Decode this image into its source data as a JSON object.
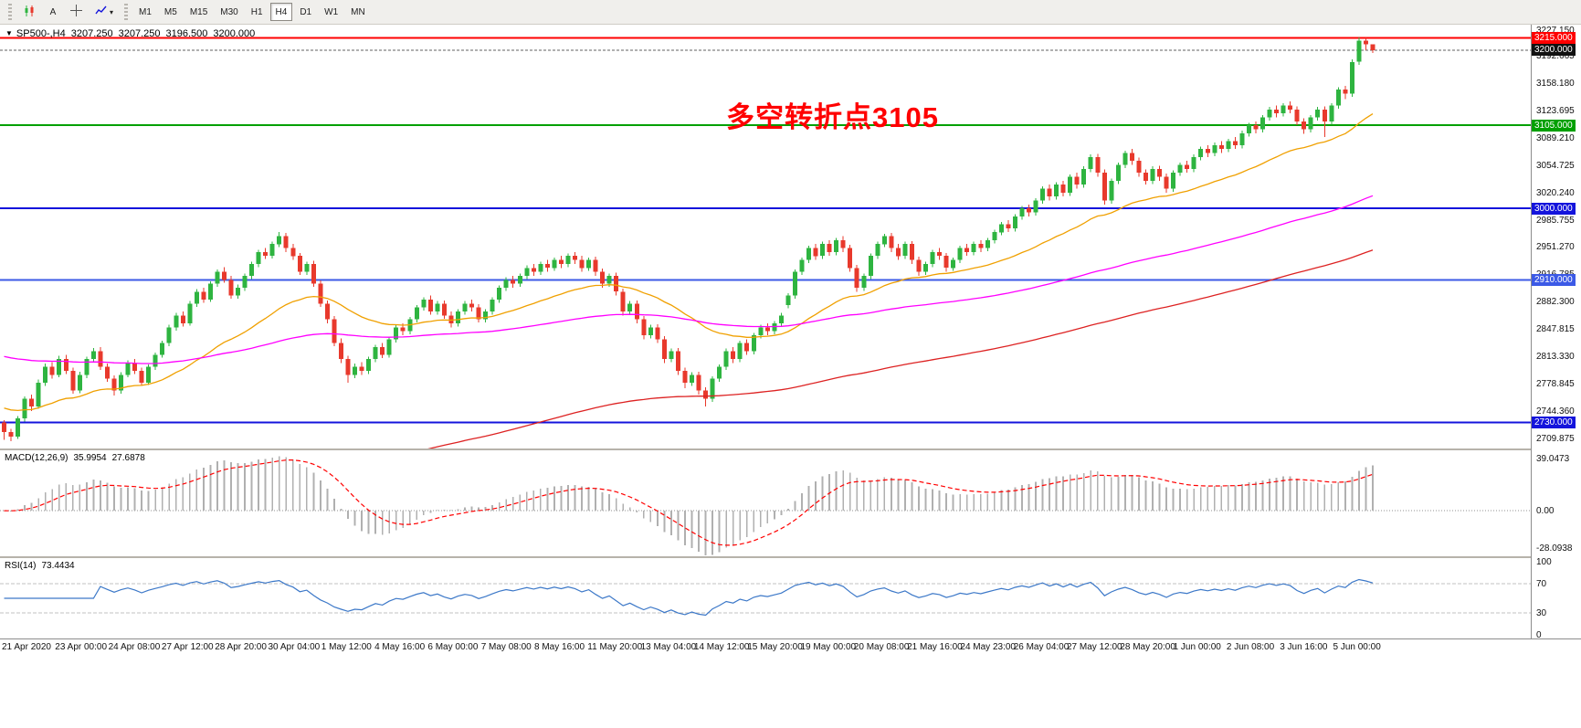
{
  "toolbar": {
    "text_tool_label": "A",
    "dropdown_arrow": "▾",
    "timeframes": [
      "M1",
      "M5",
      "M15",
      "M30",
      "H1",
      "H4",
      "D1",
      "W1",
      "MN"
    ],
    "active_timeframe": "H4"
  },
  "chart": {
    "collapse_arrow": "▼",
    "symbol": "SP500-,H4",
    "open": "3207.250",
    "high": "3207.250",
    "low": "3196.500",
    "close": "3200.000",
    "annotation": {
      "text": "多空转折点3105",
      "color": "#ff0000"
    },
    "price_ticks": [
      "3227.150",
      "3192.665",
      "3158.180",
      "3123.695",
      "3089.210",
      "3054.725",
      "3020.240",
      "2985.755",
      "2951.270",
      "2916.785",
      "2882.300",
      "2847.815",
      "2813.330",
      "2778.845",
      "2744.360",
      "2709.875"
    ],
    "bid_badge": "3200.000"
  },
  "macd": {
    "name": "MACD(12,26,9)",
    "main_value": "35.9954",
    "signal_value": "27.6878",
    "axis_labels": [
      "39.0473",
      "0.00",
      "-28.0938"
    ],
    "axis_values": [
      39.0473,
      0,
      -28.0938
    ]
  },
  "rsi": {
    "name": "RSI(14)",
    "value": "73.4434",
    "axis_labels": [
      "100",
      "70",
      "30",
      "0"
    ],
    "axis_values": [
      100,
      70,
      30,
      0
    ],
    "levels": [
      70,
      30
    ]
  },
  "time_axis": {
    "labels": [
      "21 Apr 2020",
      "23 Apr 00:00",
      "24 Apr 08:00",
      "27 Apr 12:00",
      "28 Apr 20:00",
      "30 Apr 04:00",
      "1 May 12:00",
      "4 May 16:00",
      "6 May 00:00",
      "7 May 08:00",
      "8 May 16:00",
      "11 May 20:00",
      "13 May 04:00",
      "14 May 12:00",
      "15 May 20:00",
      "19 May 00:00",
      "20 May 08:00",
      "21 May 16:00",
      "24 May 23:00",
      "26 May 04:00",
      "27 May 12:00",
      "28 May 20:00",
      "1 Jun 00:00",
      "2 Jun 08:00",
      "3 Jun 16:00",
      "5 Jun 00:00"
    ]
  },
  "chart_data": {
    "type": "candlestick",
    "symbol": "SP500-",
    "timeframe": "H4",
    "title": "SP500-,H4 3207.250 3207.250 3196.500 3200.000",
    "price_range": [
      2697,
      3232
    ],
    "bid": 3200.0,
    "current_price": "3200.000",
    "colors": {
      "up": "#2eb440",
      "down": "#e8392c",
      "bid_line": "#606060",
      "bid_badge_bg": "#111111",
      "macd_hist": "#b0b0b0",
      "macd_signal": "#ff0000",
      "rsi_line": "#3c78c8",
      "rsi_level": "#c0c0c0"
    },
    "hlines": [
      {
        "value": 3215,
        "label": "3215.000",
        "color": "#ff0000",
        "width": 2
      },
      {
        "value": 3105,
        "label": "3105.000",
        "color": "#00a000",
        "width": 2
      },
      {
        "value": 3000,
        "label": "3000.000",
        "color": "#1414dc",
        "width": 2
      },
      {
        "value": 2910,
        "label": "2910.000",
        "color": "#3c5ae6",
        "width": 2
      },
      {
        "value": 2730,
        "label": "2730.000",
        "color": "#1414dc",
        "width": 2
      }
    ],
    "overlays": [
      {
        "name": "ma-fast",
        "period": 30,
        "seed": 2750,
        "color": "#f0a000"
      },
      {
        "name": "ma-mid",
        "period": 110,
        "seed": 2815,
        "color": "#ff00ff"
      },
      {
        "name": "ma-slow",
        "period": 170,
        "seed": 2530,
        "color": "#dd2222"
      }
    ],
    "macd": {
      "fast": 12,
      "slow": 26,
      "signal": 9,
      "range": [
        -34,
        45
      ]
    },
    "rsi": {
      "period": 14,
      "range": [
        0,
        100
      ]
    },
    "candles": [
      [
        2730,
        2733,
        2708,
        2718
      ],
      [
        2718,
        2722,
        2706,
        2712
      ],
      [
        2712,
        2738,
        2709,
        2735
      ],
      [
        2735,
        2763,
        2731,
        2760
      ],
      [
        2760,
        2765,
        2744,
        2750
      ],
      [
        2750,
        2784,
        2747,
        2780
      ],
      [
        2780,
        2804,
        2776,
        2800
      ],
      [
        2800,
        2806,
        2785,
        2790
      ],
      [
        2790,
        2814,
        2787,
        2810
      ],
      [
        2810,
        2815,
        2791,
        2795
      ],
      [
        2795,
        2799,
        2766,
        2770
      ],
      [
        2770,
        2794,
        2767,
        2790
      ],
      [
        2790,
        2813,
        2786,
        2810
      ],
      [
        2810,
        2824,
        2806,
        2820
      ],
      [
        2820,
        2825,
        2796,
        2800
      ],
      [
        2800,
        2804,
        2781,
        2785
      ],
      [
        2785,
        2789,
        2764,
        2770
      ],
      [
        2770,
        2793,
        2766,
        2790
      ],
      [
        2790,
        2808,
        2787,
        2805
      ],
      [
        2805,
        2810,
        2791,
        2795
      ],
      [
        2795,
        2799,
        2776,
        2780
      ],
      [
        2780,
        2803,
        2777,
        2800
      ],
      [
        2800,
        2818,
        2796,
        2815
      ],
      [
        2815,
        2833,
        2812,
        2830
      ],
      [
        2830,
        2853,
        2826,
        2850
      ],
      [
        2850,
        2868,
        2846,
        2865
      ],
      [
        2865,
        2870,
        2851,
        2855
      ],
      [
        2855,
        2883,
        2852,
        2880
      ],
      [
        2880,
        2898,
        2876,
        2895
      ],
      [
        2895,
        2900,
        2881,
        2885
      ],
      [
        2885,
        2908,
        2882,
        2905
      ],
      [
        2905,
        2923,
        2901,
        2920
      ],
      [
        2920,
        2926,
        2906,
        2910
      ],
      [
        2910,
        2915,
        2886,
        2890
      ],
      [
        2890,
        2904,
        2886,
        2900
      ],
      [
        2900,
        2918,
        2896,
        2915
      ],
      [
        2915,
        2933,
        2911,
        2930
      ],
      [
        2930,
        2948,
        2926,
        2945
      ],
      [
        2945,
        2950,
        2936,
        2940
      ],
      [
        2940,
        2958,
        2937,
        2955
      ],
      [
        2955,
        2970,
        2951,
        2965
      ],
      [
        2965,
        2969,
        2945,
        2950
      ],
      [
        2950,
        2955,
        2935,
        2940
      ],
      [
        2940,
        2944,
        2916,
        2920
      ],
      [
        2920,
        2933,
        2916,
        2930
      ],
      [
        2930,
        2934,
        2901,
        2905
      ],
      [
        2905,
        2909,
        2876,
        2880
      ],
      [
        2880,
        2884,
        2855,
        2860
      ],
      [
        2860,
        2864,
        2826,
        2830
      ],
      [
        2830,
        2836,
        2805,
        2810
      ],
      [
        2810,
        2814,
        2780,
        2790
      ],
      [
        2790,
        2804,
        2786,
        2800
      ],
      [
        2800,
        2806,
        2790,
        2795
      ],
      [
        2795,
        2813,
        2791,
        2810
      ],
      [
        2810,
        2828,
        2806,
        2825
      ],
      [
        2825,
        2830,
        2811,
        2815
      ],
      [
        2815,
        2838,
        2812,
        2835
      ],
      [
        2835,
        2853,
        2831,
        2850
      ],
      [
        2850,
        2855,
        2840,
        2845
      ],
      [
        2845,
        2863,
        2841,
        2860
      ],
      [
        2860,
        2878,
        2856,
        2875
      ],
      [
        2875,
        2888,
        2871,
        2885
      ],
      [
        2885,
        2890,
        2866,
        2870
      ],
      [
        2870,
        2883,
        2866,
        2880
      ],
      [
        2880,
        2884,
        2861,
        2865
      ],
      [
        2865,
        2870,
        2850,
        2855
      ],
      [
        2855,
        2873,
        2851,
        2870
      ],
      [
        2870,
        2883,
        2866,
        2880
      ],
      [
        2880,
        2885,
        2870,
        2875
      ],
      [
        2875,
        2879,
        2856,
        2860
      ],
      [
        2860,
        2873,
        2856,
        2870
      ],
      [
        2870,
        2888,
        2866,
        2885
      ],
      [
        2885,
        2903,
        2881,
        2900
      ],
      [
        2900,
        2913,
        2896,
        2910
      ],
      [
        2910,
        2915,
        2900,
        2905
      ],
      [
        2905,
        2918,
        2901,
        2915
      ],
      [
        2915,
        2928,
        2911,
        2925
      ],
      [
        2925,
        2930,
        2915,
        2920
      ],
      [
        2920,
        2933,
        2916,
        2930
      ],
      [
        2930,
        2935,
        2920,
        2925
      ],
      [
        2925,
        2938,
        2921,
        2935
      ],
      [
        2935,
        2940,
        2925,
        2930
      ],
      [
        2930,
        2943,
        2926,
        2940
      ],
      [
        2940,
        2945,
        2930,
        2935
      ],
      [
        2935,
        2940,
        2920,
        2925
      ],
      [
        2925,
        2938,
        2921,
        2935
      ],
      [
        2935,
        2939,
        2915,
        2920
      ],
      [
        2920,
        2924,
        2900,
        2905
      ],
      [
        2905,
        2918,
        2901,
        2915
      ],
      [
        2915,
        2919,
        2890,
        2895
      ],
      [
        2895,
        2899,
        2865,
        2870
      ],
      [
        2870,
        2883,
        2866,
        2880
      ],
      [
        2880,
        2884,
        2855,
        2860
      ],
      [
        2860,
        2864,
        2835,
        2840
      ],
      [
        2840,
        2853,
        2836,
        2850
      ],
      [
        2850,
        2854,
        2830,
        2835
      ],
      [
        2835,
        2839,
        2805,
        2810
      ],
      [
        2810,
        2823,
        2806,
        2820
      ],
      [
        2820,
        2824,
        2790,
        2795
      ],
      [
        2795,
        2799,
        2773,
        2780
      ],
      [
        2780,
        2793,
        2776,
        2790
      ],
      [
        2790,
        2794,
        2765,
        2770
      ],
      [
        2770,
        2774,
        2750,
        2760
      ],
      [
        2760,
        2788,
        2756,
        2785
      ],
      [
        2785,
        2803,
        2781,
        2800
      ],
      [
        2800,
        2823,
        2796,
        2820
      ],
      [
        2820,
        2825,
        2805,
        2810
      ],
      [
        2810,
        2833,
        2806,
        2830
      ],
      [
        2830,
        2835,
        2815,
        2820
      ],
      [
        2820,
        2843,
        2816,
        2840
      ],
      [
        2840,
        2853,
        2836,
        2850
      ],
      [
        2850,
        2855,
        2840,
        2845
      ],
      [
        2845,
        2858,
        2841,
        2855
      ],
      [
        2855,
        2868,
        2851,
        2865
      ],
      [
        2878,
        2893,
        2874,
        2890
      ],
      [
        2890,
        2923,
        2886,
        2920
      ],
      [
        2920,
        2938,
        2916,
        2935
      ],
      [
        2935,
        2953,
        2931,
        2950
      ],
      [
        2950,
        2955,
        2935,
        2940
      ],
      [
        2940,
        2958,
        2936,
        2955
      ],
      [
        2955,
        2960,
        2940,
        2945
      ],
      [
        2945,
        2963,
        2941,
        2960
      ],
      [
        2960,
        2965,
        2945,
        2950
      ],
      [
        2950,
        2954,
        2920,
        2925
      ],
      [
        2925,
        2929,
        2895,
        2900
      ],
      [
        2900,
        2918,
        2896,
        2915
      ],
      [
        2915,
        2943,
        2911,
        2940
      ],
      [
        2940,
        2958,
        2936,
        2955
      ],
      [
        2955,
        2968,
        2951,
        2965
      ],
      [
        2965,
        2969,
        2945,
        2950
      ],
      [
        2950,
        2955,
        2935,
        2940
      ],
      [
        2940,
        2958,
        2936,
        2955
      ],
      [
        2955,
        2959,
        2930,
        2935
      ],
      [
        2935,
        2939,
        2915,
        2920
      ],
      [
        2920,
        2933,
        2916,
        2930
      ],
      [
        2930,
        2948,
        2926,
        2945
      ],
      [
        2945,
        2950,
        2935,
        2940
      ],
      [
        2940,
        2944,
        2920,
        2925
      ],
      [
        2925,
        2938,
        2921,
        2935
      ],
      [
        2935,
        2953,
        2931,
        2950
      ],
      [
        2950,
        2955,
        2940,
        2945
      ],
      [
        2945,
        2958,
        2941,
        2955
      ],
      [
        2955,
        2960,
        2945,
        2950
      ],
      [
        2950,
        2963,
        2946,
        2960
      ],
      [
        2960,
        2973,
        2956,
        2970
      ],
      [
        2970,
        2983,
        2966,
        2980
      ],
      [
        2980,
        2985,
        2970,
        2975
      ],
      [
        2975,
        2993,
        2971,
        2990
      ],
      [
        2990,
        3003,
        2986,
        3000
      ],
      [
        3000,
        3005,
        2990,
        2995
      ],
      [
        2995,
        3013,
        2991,
        3010
      ],
      [
        3010,
        3028,
        3006,
        3025
      ],
      [
        3025,
        3030,
        3010,
        3015
      ],
      [
        3015,
        3033,
        3011,
        3030
      ],
      [
        3030,
        3035,
        3015,
        3020
      ],
      [
        3020,
        3043,
        3016,
        3040
      ],
      [
        3040,
        3045,
        3025,
        3030
      ],
      [
        3030,
        3053,
        3026,
        3050
      ],
      [
        3050,
        3068,
        3046,
        3065
      ],
      [
        3065,
        3069,
        3040,
        3045
      ],
      [
        3045,
        3049,
        3005,
        3010
      ],
      [
        3010,
        3038,
        3006,
        3035
      ],
      [
        3035,
        3058,
        3031,
        3055
      ],
      [
        3055,
        3073,
        3051,
        3070
      ],
      [
        3070,
        3075,
        3055,
        3060
      ],
      [
        3060,
        3064,
        3040,
        3045
      ],
      [
        3045,
        3049,
        3030,
        3035
      ],
      [
        3035,
        3053,
        3031,
        3050
      ],
      [
        3050,
        3054,
        3035,
        3040
      ],
      [
        3040,
        3044,
        3020,
        3025
      ],
      [
        3025,
        3048,
        3021,
        3045
      ],
      [
        3045,
        3058,
        3041,
        3055
      ],
      [
        3055,
        3060,
        3045,
        3050
      ],
      [
        3050,
        3068,
        3046,
        3065
      ],
      [
        3065,
        3078,
        3061,
        3075
      ],
      [
        3075,
        3080,
        3065,
        3070
      ],
      [
        3070,
        3083,
        3066,
        3080
      ],
      [
        3080,
        3085,
        3070,
        3075
      ],
      [
        3075,
        3088,
        3071,
        3085
      ],
      [
        3085,
        3090,
        3075,
        3080
      ],
      [
        3080,
        3098,
        3076,
        3095
      ],
      [
        3095,
        3108,
        3091,
        3105
      ],
      [
        3105,
        3110,
        3095,
        3100
      ],
      [
        3100,
        3118,
        3096,
        3115
      ],
      [
        3115,
        3128,
        3111,
        3125
      ],
      [
        3125,
        3130,
        3115,
        3120
      ],
      [
        3120,
        3133,
        3116,
        3130
      ],
      [
        3130,
        3135,
        3120,
        3125
      ],
      [
        3125,
        3129,
        3105,
        3110
      ],
      [
        3110,
        3114,
        3094,
        3100
      ],
      [
        3100,
        3118,
        3096,
        3115
      ],
      [
        3115,
        3128,
        3111,
        3125
      ],
      [
        3125,
        3129,
        3090,
        3110
      ],
      [
        3110,
        3133,
        3106,
        3130
      ],
      [
        3130,
        3153,
        3126,
        3150
      ],
      [
        3150,
        3155,
        3138,
        3145
      ],
      [
        3145,
        3188,
        3141,
        3185
      ],
      [
        3185,
        3216,
        3181,
        3212
      ],
      [
        3212,
        3215,
        3200,
        3207
      ],
      [
        3207.25,
        3207.25,
        3196.5,
        3200
      ]
    ]
  }
}
